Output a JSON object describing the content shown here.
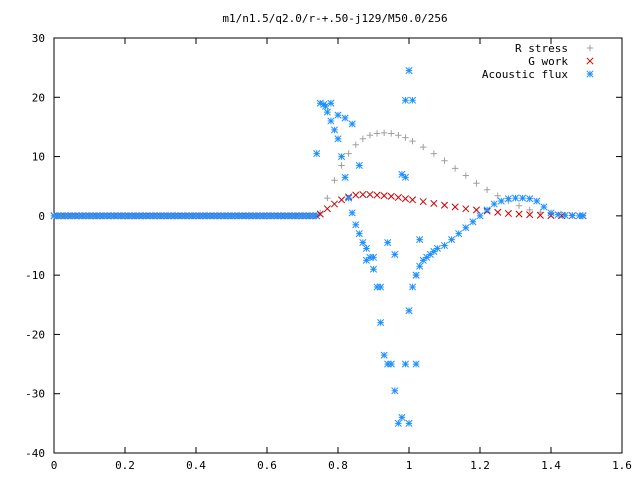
{
  "chart_data": {
    "type": "scatter",
    "title": "m1/n1.5/q2.0/r-+.50-j129/M50.0/256",
    "xlabel": "",
    "ylabel": "",
    "xlim": [
      0,
      1.6
    ],
    "ylim": [
      -40,
      30
    ],
    "x_ticks": [
      0,
      0.2,
      0.4,
      0.6,
      0.8,
      1,
      1.2,
      1.4,
      1.6
    ],
    "x_tick_labels": [
      "0",
      "0.2",
      "0.4",
      "0.6",
      "0.8",
      "1",
      "1.2",
      "1.4",
      "1.6"
    ],
    "y_ticks": [
      -40,
      -30,
      -20,
      -10,
      0,
      10,
      20,
      30
    ],
    "y_tick_labels": [
      "-40",
      "-30",
      "-20",
      "-10",
      "0",
      "10",
      "20",
      "30"
    ],
    "grid": false,
    "legend_position": "top-right",
    "series": [
      {
        "name": "R stress",
        "marker": "plus",
        "color": "#a0a0a0",
        "x": [
          0.75,
          0.77,
          0.79,
          0.81,
          0.83,
          0.85,
          0.87,
          0.89,
          0.91,
          0.93,
          0.95,
          0.97,
          0.99,
          1.01,
          1.04,
          1.07,
          1.1,
          1.13,
          1.16,
          1.19,
          1.22,
          1.25,
          1.28,
          1.31,
          1.34,
          1.37,
          1.4,
          1.43,
          1.46,
          1.49
        ],
        "y": [
          0.5,
          3.0,
          6.0,
          8.5,
          10.5,
          12.0,
          13.0,
          13.6,
          13.9,
          14.0,
          13.9,
          13.6,
          13.2,
          12.6,
          11.6,
          10.5,
          9.3,
          8.0,
          6.8,
          5.5,
          4.4,
          3.4,
          2.5,
          1.7,
          1.0,
          0.6,
          0.3,
          0.2,
          0.1,
          0.05
        ]
      },
      {
        "name": "G work",
        "marker": "cross",
        "color": "#cc0000",
        "x": [
          0.75,
          0.77,
          0.79,
          0.81,
          0.83,
          0.85,
          0.87,
          0.89,
          0.91,
          0.93,
          0.95,
          0.97,
          0.99,
          1.01,
          1.04,
          1.07,
          1.1,
          1.13,
          1.16,
          1.19,
          1.22,
          1.25,
          1.28,
          1.31,
          1.34,
          1.37,
          1.4,
          1.43,
          1.46,
          1.49
        ],
        "y": [
          0.3,
          1.2,
          2.0,
          2.7,
          3.2,
          3.5,
          3.6,
          3.6,
          3.5,
          3.4,
          3.3,
          3.1,
          2.9,
          2.7,
          2.4,
          2.1,
          1.8,
          1.5,
          1.2,
          1.0,
          0.8,
          0.6,
          0.4,
          0.3,
          0.2,
          0.1,
          0.05,
          0.03,
          0.02,
          0.01
        ]
      },
      {
        "name": "Acoustic flux",
        "marker": "star",
        "color": "#1e90ff",
        "x": [
          0.75,
          0.76,
          0.765,
          0.77,
          0.78,
          0.79,
          0.8,
          0.81,
          0.82,
          0.83,
          0.84,
          0.85,
          0.86,
          0.87,
          0.88,
          0.89,
          0.9,
          0.91,
          0.92,
          0.93,
          0.94,
          0.95,
          0.96,
          0.97,
          0.98,
          0.99,
          1.0,
          1.01,
          1.02,
          1.03,
          1.04,
          1.05,
          1.06,
          1.07,
          1.08,
          1.1,
          1.12,
          1.14,
          1.16,
          1.18,
          1.2,
          1.22,
          1.24,
          1.26,
          1.28,
          1.3,
          1.32,
          1.34,
          1.36,
          1.38,
          1.4,
          1.42,
          1.44,
          1.46,
          1.48,
          1.49,
          0.74,
          0.78,
          0.82,
          0.86,
          0.9,
          0.94,
          0.96,
          0.98,
          0.99,
          1.0,
          1.01,
          1.02,
          0.8,
          0.84,
          0.88,
          0.92,
          0.99,
          1.0,
          1.02,
          1.03
        ],
        "y": [
          19.0,
          18.8,
          18.5,
          17.5,
          16.0,
          14.5,
          13.0,
          10.0,
          6.5,
          3.0,
          0.5,
          -1.5,
          -3.0,
          -4.5,
          -5.5,
          -7.0,
          -9.0,
          -12.0,
          -18.0,
          -23.5,
          -25.0,
          -25.0,
          -29.5,
          -35.0,
          -34.0,
          -25.0,
          -16.0,
          -12.0,
          -10.0,
          -8.5,
          -7.5,
          -7.0,
          -6.5,
          -6.0,
          -5.5,
          -5.0,
          -4.0,
          -3.0,
          -2.0,
          -1.0,
          0.0,
          1.0,
          2.0,
          2.5,
          2.9,
          3.0,
          3.0,
          2.9,
          2.5,
          1.5,
          0.5,
          0.2,
          0.1,
          0.05,
          0.0,
          0.0,
          10.5,
          19.0,
          16.5,
          8.5,
          -7.0,
          -4.5,
          -6.5,
          7.0,
          19.5,
          24.5,
          19.5,
          -25.0,
          17.0,
          15.5,
          -7.5,
          -12.0,
          6.5,
          -35.0,
          -10.0,
          -4.0
        ]
      }
    ],
    "pre_onset_series": {
      "x_start": 0,
      "x_end": 0.74,
      "y": 0
    }
  }
}
